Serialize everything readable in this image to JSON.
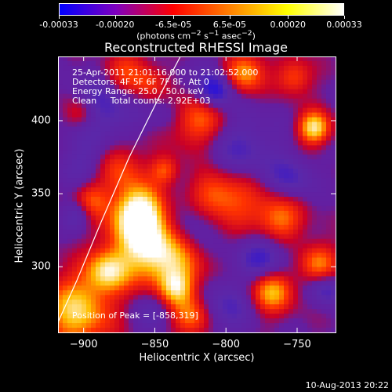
{
  "colorbar": {
    "ticks": [
      "-0.00033",
      "-0.00020",
      "-6.5e-05",
      "6.5e-05",
      "0.00020",
      "0.00033"
    ],
    "tick_values": [
      -0.00033,
      -0.0002,
      -6.5e-05,
      6.5e-05,
      0.0002,
      0.00033
    ],
    "range": [
      -0.00033,
      0.00033
    ],
    "units_html": "(photons cm<sup>−2</sup> s<sup>−1</sup> asec<sup>−2</sup>)",
    "colors": [
      "#0000ff",
      "#7f00bf",
      "#ff0000",
      "#ff8000",
      "#ffff00",
      "#ffffff"
    ]
  },
  "chart_data": {
    "type": "heatmap",
    "title": "Reconstructed RHESSI Image",
    "xlabel": "Heliocentric X (arcsec)",
    "ylabel": "Heliocentric Y (arcsec)",
    "xlim": [
      -918,
      -723
    ],
    "ylim": [
      255,
      444
    ],
    "xticks": [
      -900,
      -850,
      -800,
      -750
    ],
    "yticks": [
      300,
      350,
      400
    ],
    "info_lines": [
      "25-Apr-2011 21:01:16.000 to 21:02:52.000",
      "Detectors: 4F 5F 6F 7F 8F, Att 0",
      "Energy Range: 25.0 - 50.0 keV",
      "Clean     Total counts: 2.92E+03"
    ],
    "peak_label": "Position of Peak = [-858,319]",
    "peak": [
      -858,
      319
    ],
    "limb": [
      [
        -918,
        262
      ],
      [
        -905,
        290
      ],
      [
        -888,
        330
      ],
      [
        -868,
        375
      ],
      [
        -845,
        420
      ],
      [
        -832,
        444
      ]
    ],
    "sources": [
      [
        -855,
        318,
        18,
        1.0
      ],
      [
        -862,
        338,
        12,
        0.8
      ],
      [
        -905,
        270,
        18,
        0.8
      ],
      [
        -883,
        297,
        10,
        0.7
      ],
      [
        -835,
        297,
        15,
        0.5
      ],
      [
        -875,
        368,
        12,
        0.5
      ],
      [
        -843,
        366,
        7,
        0.5
      ],
      [
        -810,
        350,
        12,
        0.5
      ],
      [
        -820,
        400,
        14,
        0.6
      ],
      [
        -787,
        433,
        10,
        0.7
      ],
      [
        -790,
        345,
        15,
        0.4
      ],
      [
        -762,
        332,
        12,
        0.6
      ],
      [
        -768,
        284,
        11,
        0.8
      ],
      [
        -735,
        302,
        10,
        0.6
      ],
      [
        -738,
        395,
        8,
        0.9
      ],
      [
        -752,
        430,
        9,
        0.5
      ],
      [
        -870,
        432,
        12,
        0.5
      ],
      [
        -902,
        405,
        8,
        0.4
      ],
      [
        -853,
        425,
        8,
        0.3
      ],
      [
        -825,
        265,
        10,
        0.6
      ],
      [
        -835,
        285,
        8,
        0.5
      ],
      [
        -895,
        346,
        9,
        0.5
      ]
    ],
    "sinks": [
      [
        -885,
        410,
        16,
        0.6
      ],
      [
        -828,
        330,
        14,
        0.5
      ],
      [
        -790,
        380,
        18,
        0.5
      ],
      [
        -773,
        305,
        13,
        0.7
      ],
      [
        -897,
        370,
        13,
        0.4
      ],
      [
        -810,
        425,
        11,
        0.4
      ],
      [
        -800,
        272,
        13,
        0.5
      ],
      [
        -840,
        406,
        9,
        0.3
      ],
      [
        -755,
        360,
        11,
        0.5
      ],
      [
        -850,
        270,
        11,
        0.4
      ],
      [
        -807,
        420,
        8,
        0.6
      ],
      [
        -730,
        285,
        8,
        0.6
      ],
      [
        -904,
        336,
        7,
        0.5
      ]
    ]
  },
  "footer": "10-Aug-2013 20:22"
}
